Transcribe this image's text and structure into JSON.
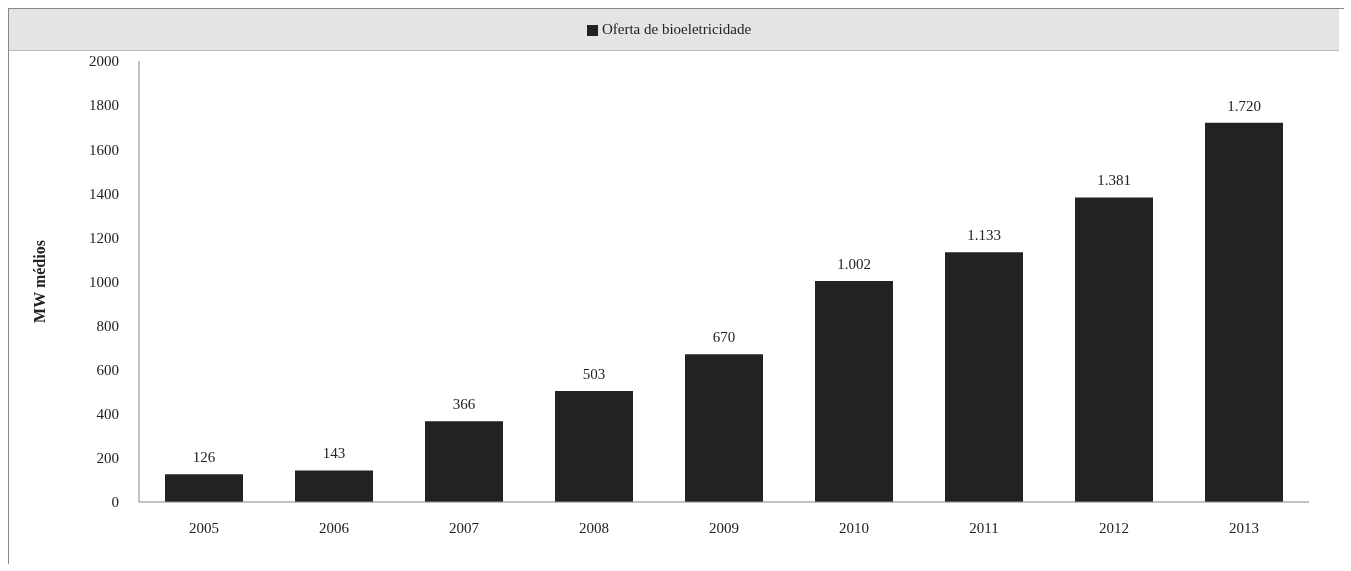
{
  "chart_data": {
    "type": "bar",
    "ylabel": "MW médios",
    "categories": [
      "2005",
      "2006",
      "2007",
      "2008",
      "2009",
      "2010",
      "2011",
      "2012",
      "2013"
    ],
    "series": [
      {
        "name": "Oferta de bioeletricidade",
        "color": "#222222",
        "values": [
          126,
          143,
          366,
          503,
          670,
          1002,
          1133,
          1381,
          1720
        ]
      }
    ],
    "value_labels": [
      "126",
      "143",
      "366",
      "503",
      "670",
      "1.002",
      "1.133",
      "1.381",
      "1.720"
    ],
    "ylim": [
      0,
      2000
    ],
    "yticks": [
      0,
      200,
      400,
      600,
      800,
      1000,
      1200,
      1400,
      1600,
      1800,
      2000
    ],
    "grid": false,
    "legend": "top"
  }
}
